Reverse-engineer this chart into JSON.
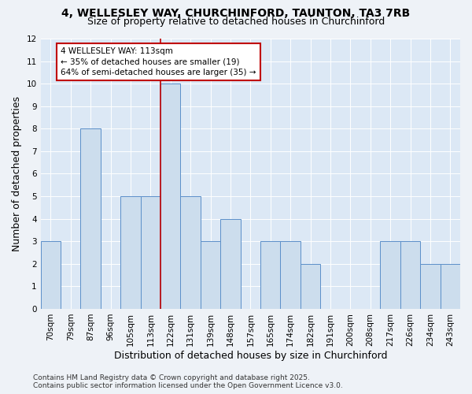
{
  "title_line1": "4, WELLESLEY WAY, CHURCHINFORD, TAUNTON, TA3 7RB",
  "title_line2": "Size of property relative to detached houses in Churchinford",
  "xlabel": "Distribution of detached houses by size in Churchinford",
  "ylabel": "Number of detached properties",
  "categories": [
    "70sqm",
    "79sqm",
    "87sqm",
    "96sqm",
    "105sqm",
    "113sqm",
    "122sqm",
    "131sqm",
    "139sqm",
    "148sqm",
    "157sqm",
    "165sqm",
    "174sqm",
    "182sqm",
    "191sqm",
    "200sqm",
    "208sqm",
    "217sqm",
    "226sqm",
    "234sqm",
    "243sqm"
  ],
  "values": [
    3,
    0,
    8,
    0,
    5,
    5,
    10,
    5,
    3,
    4,
    0,
    3,
    3,
    2,
    0,
    0,
    0,
    3,
    3,
    2,
    2
  ],
  "highlight_index": 5,
  "bar_color": "#ccdded",
  "bar_edge_color": "#5b8fc9",
  "highlight_line_color": "#c00000",
  "annotation_text": "4 WELLESLEY WAY: 113sqm\n← 35% of detached houses are smaller (19)\n64% of semi-detached houses are larger (35) →",
  "annotation_box_color": "white",
  "annotation_box_edge_color": "#c00000",
  "ylim": [
    0,
    12
  ],
  "yticks": [
    0,
    1,
    2,
    3,
    4,
    5,
    6,
    7,
    8,
    9,
    10,
    11,
    12
  ],
  "footer_line1": "Contains HM Land Registry data © Crown copyright and database right 2025.",
  "footer_line2": "Contains public sector information licensed under the Open Government Licence v3.0.",
  "bg_color": "#eef2f7",
  "plot_bg_color": "#dce8f5",
  "grid_color": "#ffffff",
  "title_fontsize": 10,
  "subtitle_fontsize": 9,
  "axis_label_fontsize": 9,
  "tick_fontsize": 7.5,
  "annotation_fontsize": 7.5,
  "footer_fontsize": 6.5
}
